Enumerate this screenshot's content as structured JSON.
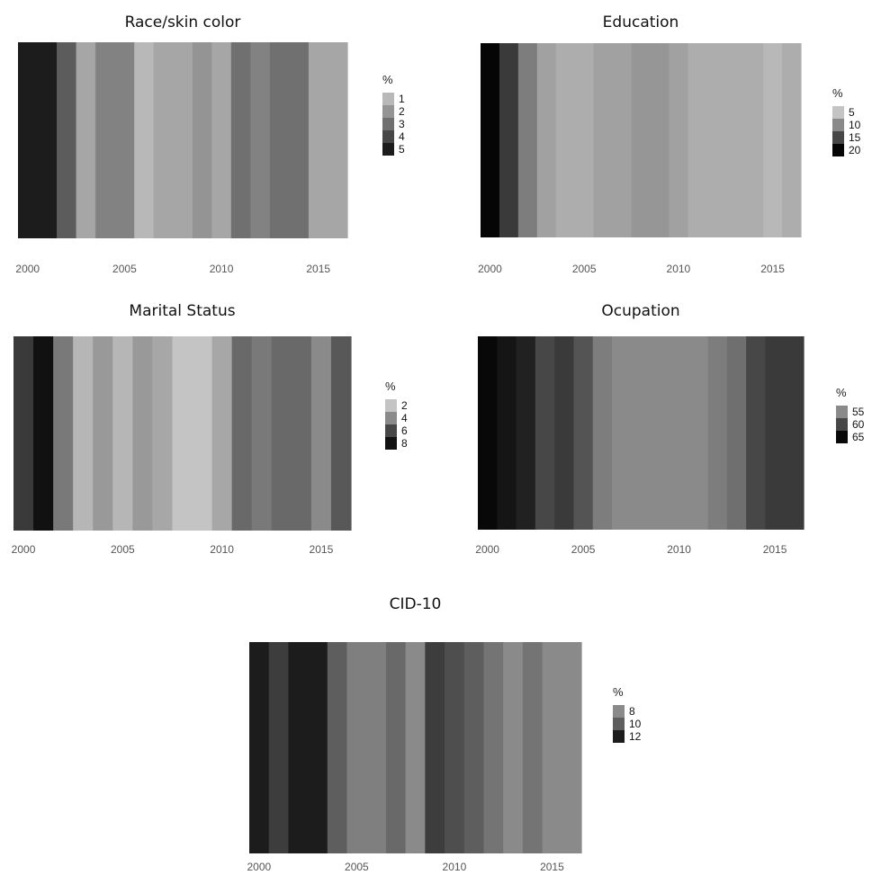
{
  "chart_data": [
    {
      "type": "heatmap",
      "title": "Race/skin color",
      "x": [
        2000,
        2001,
        2002,
        2003,
        2004,
        2005,
        2006,
        2007,
        2008,
        2009,
        2010,
        2011,
        2012,
        2013,
        2014,
        2015,
        2016
      ],
      "values": [
        5,
        5,
        3.5,
        1.5,
        2.5,
        2.5,
        1,
        1.5,
        1.5,
        2,
        1.5,
        3,
        2.5,
        3,
        3,
        1.5,
        1.5
      ],
      "xticks": [
        "2000",
        "2005",
        "2010",
        "2015"
      ],
      "legend": {
        "title": "%",
        "entries": [
          "1",
          "2",
          "3",
          "4",
          "5"
        ],
        "colors": [
          "#b8b8b8",
          "#949494",
          "#707070",
          "#474747",
          "#1c1c1c"
        ]
      },
      "xlim": [
        1999.5,
        2016.5
      ]
    },
    {
      "type": "heatmap",
      "title": "Education",
      "x": [
        2000,
        2001,
        2002,
        2003,
        2004,
        2005,
        2006,
        2007,
        2008,
        2009,
        2010,
        2011,
        2012,
        2013,
        2014,
        2015,
        2016
      ],
      "values": [
        20,
        16,
        11,
        8,
        7,
        7,
        8,
        8,
        9,
        9,
        8,
        7,
        7,
        7,
        7,
        6,
        7
      ],
      "xticks": [
        "2000",
        "2005",
        "2010",
        "2015"
      ],
      "legend": {
        "title": "%",
        "entries": [
          "5",
          "10",
          "15",
          "20"
        ],
        "colors": [
          "#c4c4c4",
          "#8a8a8a",
          "#474747",
          "#050505"
        ]
      },
      "xlim": [
        1999.5,
        2016.5
      ]
    },
    {
      "type": "heatmap",
      "title": "Marital Status",
      "x": [
        2000,
        2001,
        2002,
        2003,
        2004,
        2005,
        2006,
        2007,
        2008,
        2009,
        2010,
        2011,
        2012,
        2013,
        2014,
        2015,
        2016
      ],
      "values": [
        6.5,
        8.5,
        4.5,
        2.5,
        3.5,
        2.5,
        3.5,
        3,
        2,
        2,
        3,
        5,
        4.5,
        5,
        5,
        4,
        5.5
      ],
      "xticks": [
        "2000",
        "2005",
        "2010",
        "2015"
      ],
      "legend": {
        "title": "%",
        "entries": [
          "2",
          "4",
          "6",
          "8"
        ],
        "colors": [
          "#c4c4c4",
          "#8a8a8a",
          "#474747",
          "#111111"
        ]
      },
      "xlim": [
        1999.5,
        2016.5
      ]
    },
    {
      "type": "heatmap",
      "title": "Ocupation",
      "x": [
        2000,
        2001,
        2002,
        2003,
        2004,
        2005,
        2006,
        2007,
        2008,
        2009,
        2010,
        2011,
        2012,
        2013,
        2014,
        2015,
        2016
      ],
      "values": [
        66,
        64,
        63,
        60,
        61,
        59,
        56,
        55,
        54,
        52,
        55,
        52,
        56,
        57,
        60,
        61,
        61
      ],
      "xticks": [
        "2000",
        "2005",
        "2010",
        "2015"
      ],
      "legend": {
        "title": "%",
        "entries": [
          "55",
          "60",
          "65"
        ],
        "colors": [
          "#8a8a8a",
          "#474747",
          "#080808"
        ]
      },
      "xlim": [
        1999.5,
        2016.5
      ]
    },
    {
      "type": "heatmap",
      "title": "CID-10",
      "x": [
        2000,
        2001,
        2002,
        2003,
        2004,
        2005,
        2006,
        2007,
        2008,
        2009,
        2010,
        2011,
        2012,
        2013,
        2014,
        2015,
        2016
      ],
      "values": [
        12.5,
        11,
        12,
        13,
        10,
        8.5,
        8.5,
        9.5,
        7.5,
        11,
        10.5,
        10,
        9,
        8,
        9,
        8,
        6.5
      ],
      "xticks": [
        "2000",
        "2005",
        "2010",
        "2015"
      ],
      "legend": {
        "title": "%",
        "entries": [
          "8",
          "10",
          "12"
        ],
        "colors": [
          "#8a8a8a",
          "#5e5e5e",
          "#1c1c1c"
        ]
      },
      "xlim": [
        1999.5,
        2016.5
      ]
    }
  ]
}
